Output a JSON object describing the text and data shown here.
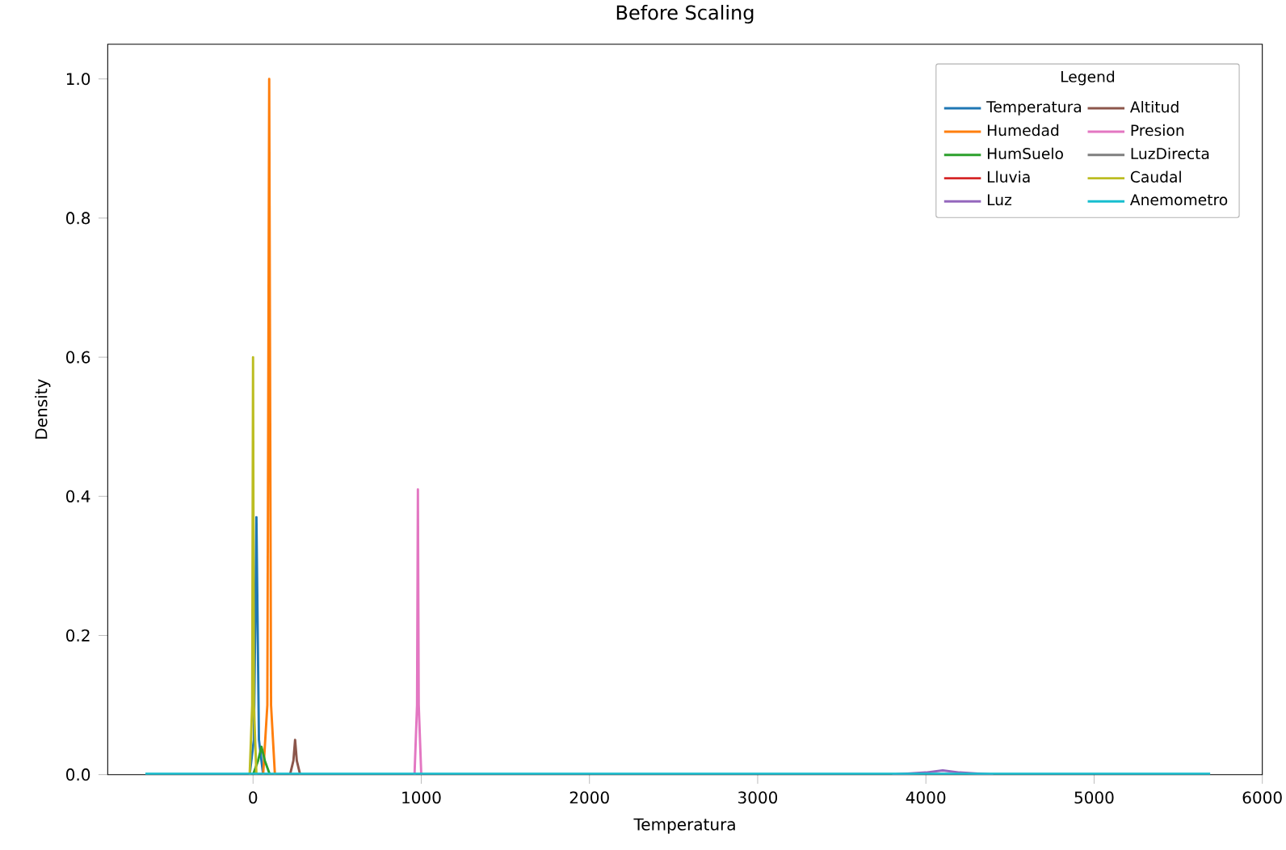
{
  "chart_data": {
    "type": "line",
    "title": "Before Scaling",
    "xlabel": "Temperatura",
    "ylabel": "Density",
    "legend_title": "Legend",
    "xlim": [
      -864,
      6000
    ],
    "ylim": [
      0,
      1.05
    ],
    "xticks": [
      0,
      1000,
      2000,
      3000,
      4000,
      5000,
      6000
    ],
    "yticks": [
      {
        "value": 0,
        "label": "0.0"
      },
      {
        "value": 0.2,
        "label": "0.2"
      },
      {
        "value": 0.4,
        "label": "0.4"
      },
      {
        "value": 0.6,
        "label": "0.6"
      },
      {
        "value": 0.8,
        "label": "0.8"
      },
      {
        "value": 1.0,
        "label": "1.0"
      }
    ],
    "legend": "top right",
    "grid": false,
    "marker": "none",
    "line_style": "solid",
    "series": [
      {
        "name": "Temperatura",
        "color": "#1f77b4",
        "x": [
          -20,
          5,
          20,
          35,
          60
        ],
        "values": [
          0,
          0.05,
          0.37,
          0.05,
          0
        ]
      },
      {
        "name": "Humedad",
        "color": "#ff7f0e",
        "x": [
          60,
          85,
          96,
          107,
          130
        ],
        "values": [
          0,
          0.1,
          1.0,
          0.1,
          0
        ]
      },
      {
        "name": "HumSuelo",
        "color": "#2ca02c",
        "x": [
          0,
          30,
          50,
          70,
          100
        ],
        "values": [
          0,
          0.02,
          0.04,
          0.02,
          0
        ]
      },
      {
        "name": "Lluvia",
        "color": "#d62728"
      },
      {
        "name": "Luz",
        "color": "#9467bd",
        "x": [
          3800,
          4000,
          4100,
          4200,
          4400
        ],
        "values": [
          0,
          0.003,
          0.006,
          0.003,
          0
        ]
      },
      {
        "name": "Altitud",
        "color": "#8c564b",
        "x": [
          220,
          240,
          250,
          260,
          280
        ],
        "values": [
          0,
          0.02,
          0.05,
          0.02,
          0
        ]
      },
      {
        "name": "Presion",
        "color": "#e377c2",
        "x": [
          960,
          975,
          980,
          985,
          1000
        ],
        "values": [
          0,
          0.1,
          0.41,
          0.1,
          0
        ]
      },
      {
        "name": "LuzDirecta",
        "color": "#7f7f7f"
      },
      {
        "name": "Caudal",
        "color": "#bcbd22",
        "x": [
          -20,
          -5,
          0,
          5,
          20
        ],
        "values": [
          0,
          0.1,
          0.6,
          0.1,
          0
        ]
      },
      {
        "name": "Anemometro",
        "color": "#17becf",
        "x": [
          -640,
          0,
          2000,
          4000,
          5690
        ],
        "values": [
          0.001,
          0.001,
          0.001,
          0.001,
          0.001
        ]
      }
    ]
  }
}
